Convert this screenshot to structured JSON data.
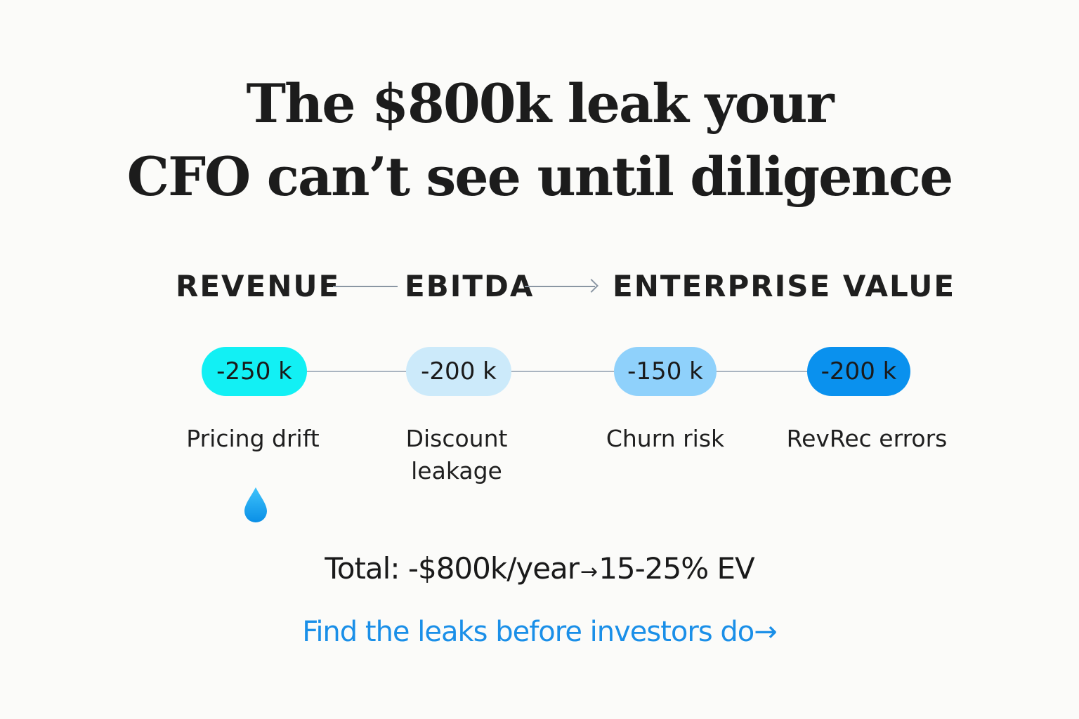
{
  "headline": {
    "line1": "The $800k leak your",
    "line2": "CFO can’t see until diligence"
  },
  "stages": [
    "REVENUE",
    "EBITDA",
    "ENTERPRISE VALUE"
  ],
  "leaks": [
    {
      "amount": "-250 k",
      "label_line1": "Pricing drift",
      "label_line2": "",
      "color": "#12f0f4"
    },
    {
      "amount": "-200 k",
      "label_line1": "Discount",
      "label_line2": "leakage",
      "color": "#cceafa"
    },
    {
      "amount": "-150 k",
      "label_line1": "Churn risk",
      "label_line2": "",
      "color": "#8fd1fb"
    },
    {
      "amount": "-200 k",
      "label_line1": "RevRec errors",
      "label_line2": "",
      "color": "#0a91ee"
    }
  ],
  "icon": "water-drop-icon",
  "total": {
    "prefix": "Total: -$800k/year",
    "arrow": "→",
    "suffix": "15-25% EV"
  },
  "cta": {
    "label": "Find the leaks before investors do→",
    "color": "#1a8fe8"
  }
}
